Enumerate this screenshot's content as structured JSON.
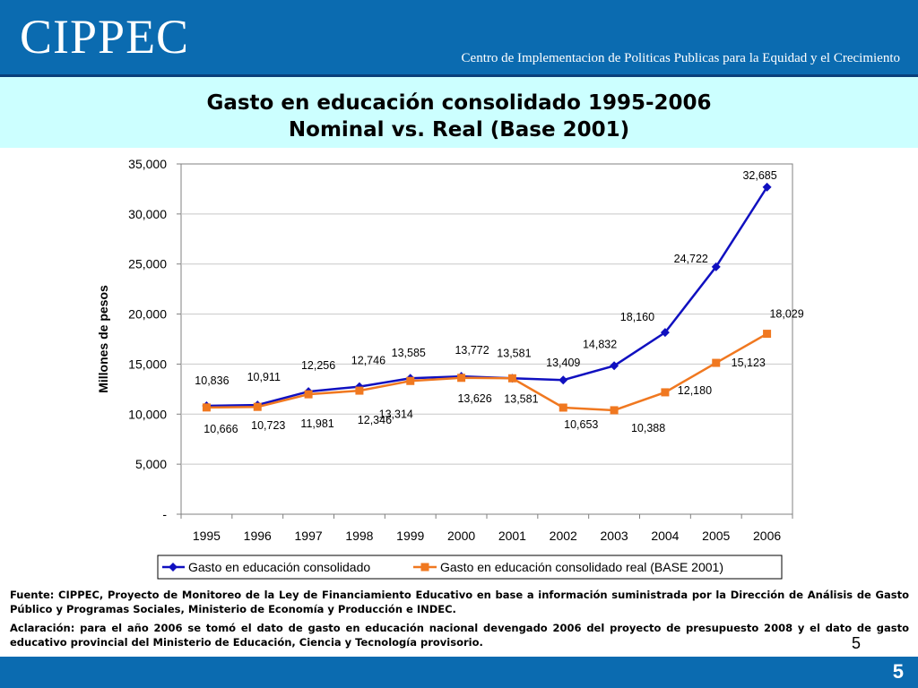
{
  "header": {
    "logo_text": "CIPPEC",
    "tagline": "Centro de Implementacion de Politicas Publicas para la Equidad y el Crecimiento",
    "background_color": "#0b6bb0"
  },
  "title": {
    "line1": "Gasto en educación consolidado 1995-2006",
    "line2": "Nominal vs. Real (Base 2001)"
  },
  "chart_data": {
    "type": "line",
    "x": [
      "1995",
      "1996",
      "1997",
      "1998",
      "1999",
      "2000",
      "2001",
      "2002",
      "2003",
      "2004",
      "2005",
      "2006"
    ],
    "series": [
      {
        "name": "Gasto en educación consolidado",
        "color": "#1010c0",
        "marker": "diamond",
        "values": [
          10836,
          10911,
          12256,
          12746,
          13585,
          13772,
          13581,
          13409,
          14832,
          18160,
          24722,
          32685
        ],
        "labels": [
          "10,836",
          "10,911",
          "12,256",
          "12,746",
          "13,585",
          "13,772",
          "13,581",
          "13,409",
          "14,832",
          "18,160",
          "24,722",
          "32,685"
        ]
      },
      {
        "name": "Gasto en educación consolidado real (BASE 2001)",
        "color": "#f07820",
        "marker": "square",
        "values": [
          10666,
          10723,
          11981,
          12346,
          13314,
          13626,
          13581,
          10653,
          10388,
          12180,
          15123,
          18029
        ],
        "labels": [
          "10,666",
          "10,723",
          "11,981",
          "12,346",
          "13,314",
          "13,626",
          "13,581",
          "10,653",
          "10,388",
          "12,180",
          "15,123",
          "18,029"
        ]
      }
    ],
    "ylabel": "Millones de pesos",
    "xlabel": "",
    "ylim": [
      0,
      35000
    ],
    "yticks": [
      {
        "value": 0,
        "label": "-"
      },
      {
        "value": 5000,
        "label": "5,000"
      },
      {
        "value": 10000,
        "label": "10,000"
      },
      {
        "value": 15000,
        "label": "15,000"
      },
      {
        "value": 20000,
        "label": "20,000"
      },
      {
        "value": 25000,
        "label": "25,000"
      },
      {
        "value": 30000,
        "label": "30,000"
      },
      {
        "value": 35000,
        "label": "35,000"
      }
    ],
    "grid": true,
    "legend_position": "bottom"
  },
  "notes": {
    "source": "Fuente: CIPPEC, Proyecto de Monitoreo de la Ley de Financiamiento Educativo en base a información suministrada por la Dirección de Análisis de Gasto Público y Programas Sociales, Ministerio de Economía y Producción e INDEC.",
    "clarification": "Aclaración: para el año 2006 se tomó el dato de gasto en educación nacional devengado 2006 del proyecto de presupuesto 2008 y el dato de gasto educativo provincial  del Ministerio de Educación, Ciencia y Tecnología provisorio."
  },
  "footer": {
    "page_number_small": "5",
    "page_number": "5"
  }
}
